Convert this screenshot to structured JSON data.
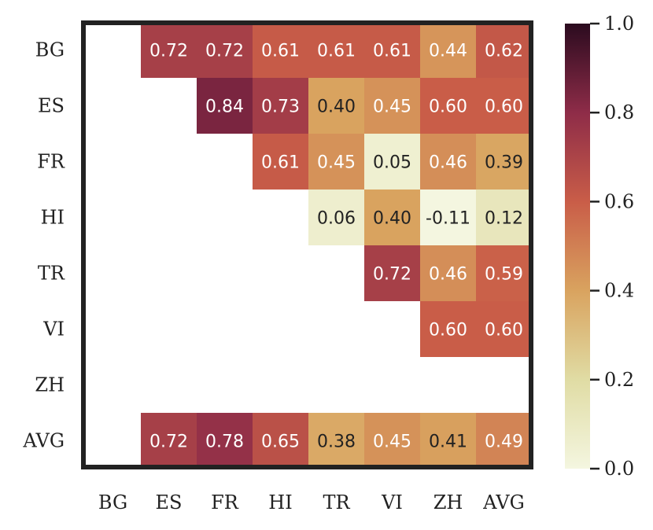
{
  "chart_data": {
    "type": "heatmap",
    "title": "",
    "rows": [
      "BG",
      "ES",
      "FR",
      "HI",
      "TR",
      "VI",
      "ZH",
      "AVG"
    ],
    "columns": [
      "BG",
      "ES",
      "FR",
      "HI",
      "TR",
      "VI",
      "ZH",
      "AVG"
    ],
    "values": [
      [
        null,
        0.72,
        0.72,
        0.61,
        0.61,
        0.61,
        0.44,
        0.62
      ],
      [
        null,
        null,
        0.84,
        0.73,
        0.4,
        0.45,
        0.6,
        0.6
      ],
      [
        null,
        null,
        null,
        0.61,
        0.45,
        0.05,
        0.46,
        0.39
      ],
      [
        null,
        null,
        null,
        null,
        0.06,
        0.4,
        -0.11,
        0.12
      ],
      [
        null,
        null,
        null,
        null,
        null,
        0.72,
        0.46,
        0.59
      ],
      [
        null,
        null,
        null,
        null,
        null,
        null,
        0.6,
        0.6
      ],
      [
        null,
        null,
        null,
        null,
        null,
        null,
        null,
        null
      ],
      [
        null,
        0.72,
        0.78,
        0.65,
        0.38,
        0.45,
        0.41,
        0.49
      ]
    ],
    "value_labels": [
      [
        null,
        "0.72",
        "0.72",
        "0.61",
        "0.61",
        "0.61",
        "0.44",
        "0.62"
      ],
      [
        null,
        null,
        "0.84",
        "0.73",
        "0.40",
        "0.45",
        "0.60",
        "0.60"
      ],
      [
        null,
        null,
        null,
        "0.61",
        "0.45",
        "0.05",
        "0.46",
        "0.39"
      ],
      [
        null,
        null,
        null,
        null,
        "0.06",
        "0.40",
        "-0.11",
        "0.12"
      ],
      [
        null,
        null,
        null,
        null,
        null,
        "0.72",
        "0.46",
        "0.59"
      ],
      [
        null,
        null,
        null,
        null,
        null,
        null,
        "0.60",
        "0.60"
      ],
      [
        null,
        null,
        null,
        null,
        null,
        null,
        null,
        null
      ],
      [
        null,
        "0.72",
        "0.78",
        "0.65",
        "0.38",
        "0.45",
        "0.41",
        "0.49"
      ]
    ],
    "colorbar": {
      "min": 0.0,
      "max": 1.0,
      "ticks": [
        "0.0",
        "0.2",
        "0.4",
        "0.6",
        "0.8",
        "1.0"
      ],
      "colormap": [
        "#f4f6e0",
        "#e0dca4",
        "#d9a35f",
        "#c95d48",
        "#8e2c48",
        "#2b0b1f"
      ]
    }
  }
}
